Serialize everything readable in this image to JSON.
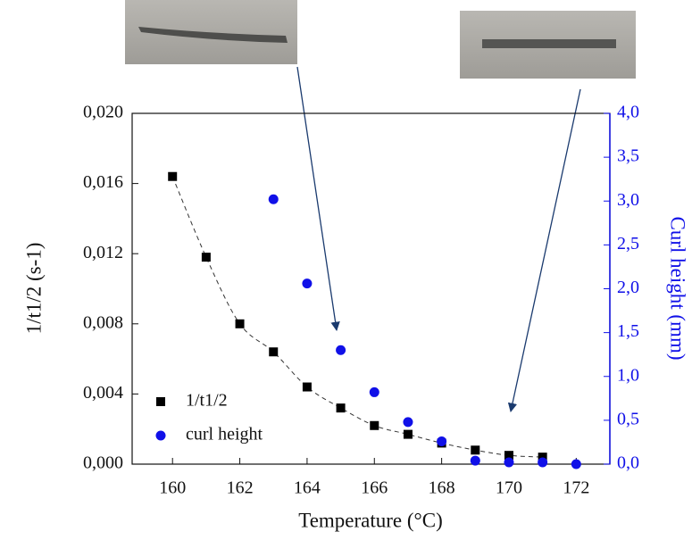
{
  "chart_data": {
    "type": "scatter",
    "x_label": "Temperature (°C)",
    "y_label": "1/t1/2 (s-1)",
    "y2_label": "Curl height (mm)",
    "xlim": [
      158.8,
      173
    ],
    "xticks": [
      160,
      162,
      164,
      166,
      168,
      170,
      172
    ],
    "ylim": [
      0,
      0.02
    ],
    "yticks": [
      {
        "value": 0,
        "label": "0,000"
      },
      {
        "value": 0.004,
        "label": "0,004"
      },
      {
        "value": 0.008,
        "label": "0,008"
      },
      {
        "value": 0.012,
        "label": "0,012"
      },
      {
        "value": 0.016,
        "label": "0,016"
      },
      {
        "value": 0.02,
        "label": "0,020"
      }
    ],
    "y2lim": [
      0,
      4
    ],
    "y2ticks": [
      {
        "value": 0,
        "label": "0,0"
      },
      {
        "value": 0.5,
        "label": "0,5"
      },
      {
        "value": 1,
        "label": "1,0"
      },
      {
        "value": 1.5,
        "label": "1,5"
      },
      {
        "value": 2,
        "label": "2,0"
      },
      {
        "value": 2.5,
        "label": "2,5"
      },
      {
        "value": 3,
        "label": "3,0"
      },
      {
        "value": 3.5,
        "label": "3,5"
      },
      {
        "value": 4,
        "label": "4,0"
      }
    ],
    "legend": "lower left",
    "series": [
      {
        "name": "1/t1/2",
        "color": "#000000",
        "marker": "square",
        "x": [
          160,
          161,
          162,
          163,
          164,
          165,
          166,
          167,
          168,
          169,
          170,
          171
        ],
        "values": [
          0.0164,
          0.0118,
          0.008,
          0.0064,
          0.0044,
          0.0032,
          0.0022,
          0.0017,
          0.0012,
          0.0008,
          0.0005,
          0.0004
        ]
      },
      {
        "name": "curl height",
        "color": "#1010e8",
        "marker": "circle",
        "axis": "y2",
        "x": [
          163,
          164,
          165,
          166,
          167,
          168,
          169,
          170,
          171,
          172
        ],
        "values": [
          3.02,
          2.06,
          1.3,
          0.82,
          0.48,
          0.26,
          0.04,
          0.02,
          0.02,
          0.0
        ]
      }
    ]
  }
}
